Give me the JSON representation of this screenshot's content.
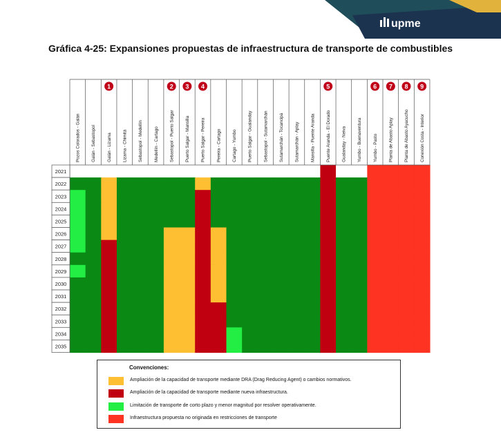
{
  "brand": {
    "logo_text": "upme",
    "colors": {
      "navy": "#1c3350",
      "teal": "#1f4e5a",
      "gold": "#e2b33c"
    }
  },
  "title": "Gráfica 4-25: Expansiones propuestas de infraestructura de transporte de combustibles",
  "colors": {
    "G": "#0a8a14",
    "Y": "#ffbf33",
    "R": "#c00010",
    "L": "#22ee44",
    "O": "#ff3322",
    "badge": "#c00018"
  },
  "chart_data": {
    "type": "heatmap",
    "years": [
      "2021",
      "2022",
      "2023",
      "2024",
      "2025",
      "2026",
      "2027",
      "2028",
      "2029",
      "2030",
      "2031",
      "2032",
      "2033",
      "2034",
      "2035"
    ],
    "columns": [
      {
        "label": "Pozos Colorados - Galán",
        "badge": ""
      },
      {
        "label": "Galán - Sebastopol",
        "badge": ""
      },
      {
        "label": "Galán - Lizama",
        "badge": "1"
      },
      {
        "label": "Lizama - Chimitá",
        "badge": ""
      },
      {
        "label": "Sebastopol - Medellín",
        "badge": ""
      },
      {
        "label": "Medellín - Cartago",
        "badge": ""
      },
      {
        "label": "Sebastopol - Puerto Salgar",
        "badge": "2"
      },
      {
        "label": "Puerto Salgar - Mansilla",
        "badge": "3"
      },
      {
        "label": "Puerto Salgar - Pereira",
        "badge": "4"
      },
      {
        "label": "Pereira - Cartago",
        "badge": ""
      },
      {
        "label": "Cartago - Yumbo",
        "badge": ""
      },
      {
        "label": "Puerto Salgar - Gualanday",
        "badge": ""
      },
      {
        "label": "Sebastopol - Sutamarchán",
        "badge": ""
      },
      {
        "label": "Sutamarchán - Tocancipá",
        "badge": ""
      },
      {
        "label": "Sutamarchán - Aplay",
        "badge": ""
      },
      {
        "label": "Mansilla - Puente Aranda",
        "badge": ""
      },
      {
        "label": "Puente Aranda - El Dorado",
        "badge": "5"
      },
      {
        "label": "Gualanday - Neiva",
        "badge": ""
      },
      {
        "label": "Yumbo - Buenaventura",
        "badge": ""
      },
      {
        "label": "Yumbo - Pasto",
        "badge": "6"
      },
      {
        "label": "Planta de Abasto Aplay",
        "badge": "7"
      },
      {
        "label": "Planta de Abasto Ayacucho",
        "badge": "8"
      },
      {
        "label": "Conexión Costa - Interior",
        "badge": "9"
      }
    ],
    "cells": [
      "WWWWWWWWWWWWWWWWRWWOOOO",
      "GGYGGGGGYGGGGGGGRGGOOOO",
      "LGYGGGGGRGGGGGGGRGGOOOO",
      "LGYGGGGGRGGGGGGGRGGOOOO",
      "LGYGGGGGRGGGGGGGRGGOOOO",
      "LGYGGGYYRYGGGGGGRGGOOOO",
      "LGRGGGYYRYGGGGGGRGGOOOO",
      "GGRGGGYYRYGGGGGGRGGOOOO",
      "LGRGGGYYRYGGGGGGRGGOOOO",
      "GGRGGGYYRYGGGGGGRGGOOOO",
      "GGRGGGYYRYGGGGGGRGGOOOO",
      "GGRGGGYYRRGGGGGGRGGOOOO",
      "GGRGGGYYRRGGGGGGRGGOOOO",
      "GGRGGGYYRRLGGGGGRGGOOOO",
      "GGRGGGYYRRLGGGGGRGGOOOO"
    ],
    "legend": {
      "title": "Convenciones:",
      "items": [
        {
          "color": "#ffbf33",
          "label": "Ampliación de la capacidad de transporte mediante DRA (Drag Reducing Agent) o cambios normativos."
        },
        {
          "color": "#c00010",
          "label": "Ampliación de la capacidad de transporte mediante nueva infraestructura."
        },
        {
          "color": "#22ee44",
          "label": "Limitación de transporte de corto plazo y menor magnitud por resolver operativamente."
        },
        {
          "color": "#ff3322",
          "label": "Infraestructura propuesta no originada en restricciones de transporte"
        }
      ]
    }
  }
}
